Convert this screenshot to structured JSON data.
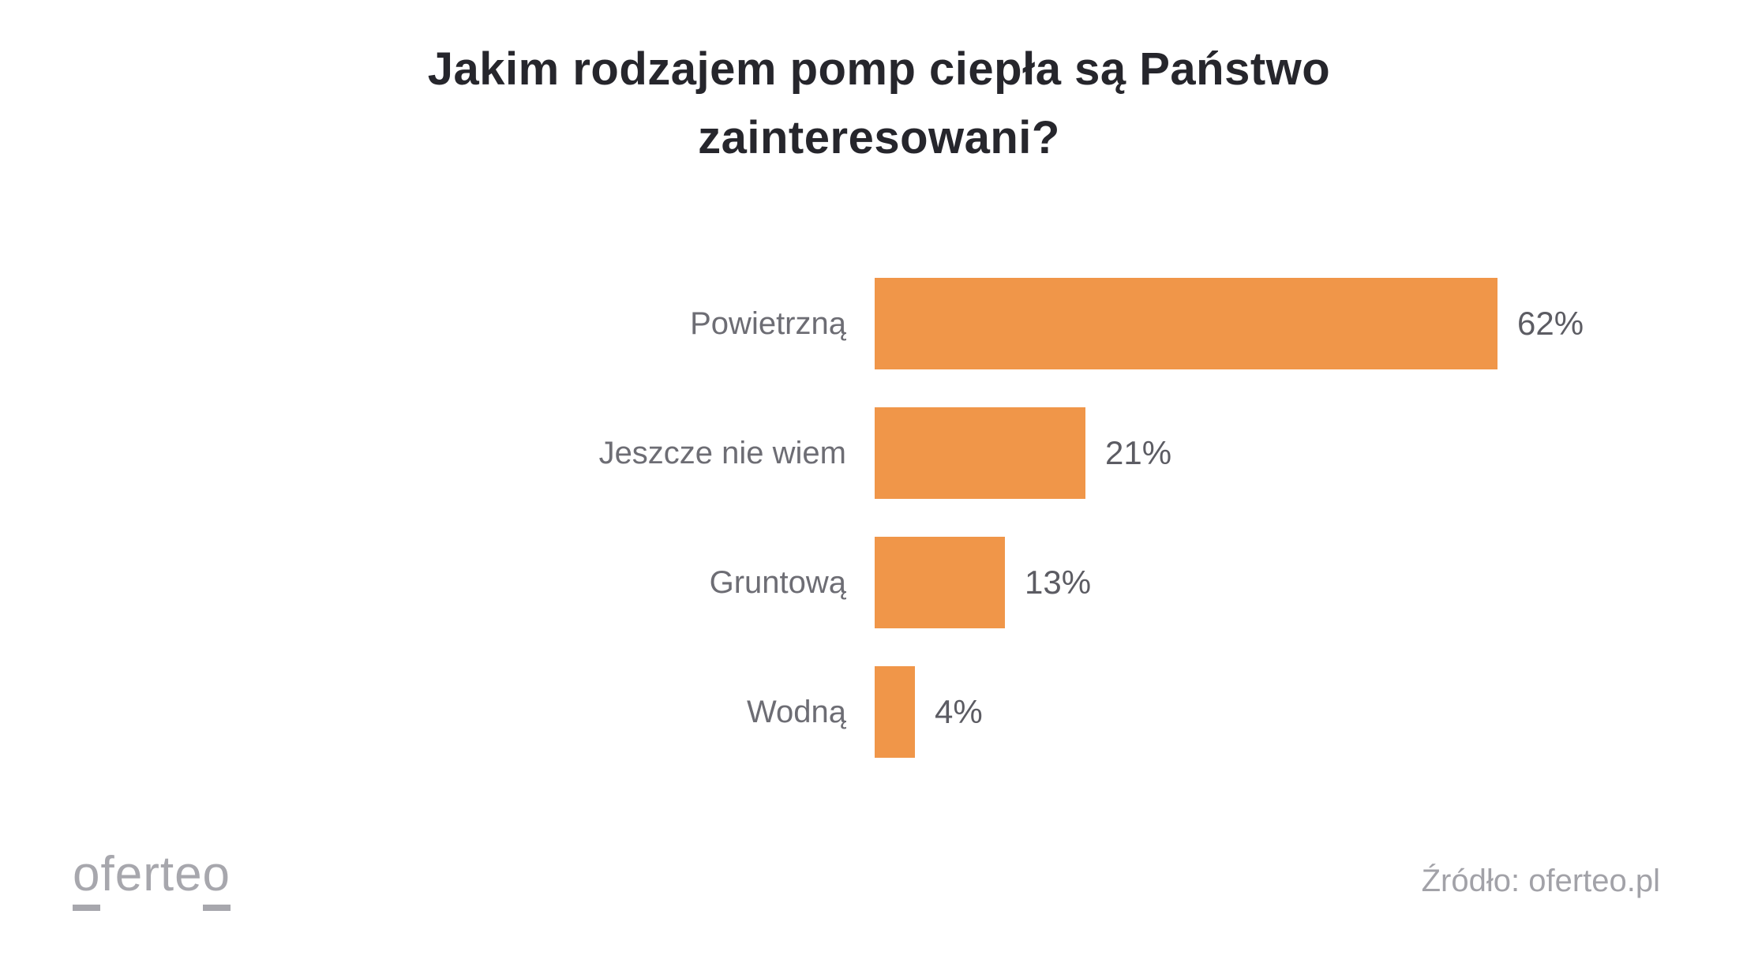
{
  "title": {
    "line1": "Jakim rodzajem pomp ciepła są Państwo",
    "line2": "zainteresowani?"
  },
  "chart_data": {
    "type": "bar",
    "orientation": "horizontal",
    "title": "Jakim rodzajem pomp ciepła są Państwo zainteresowani?",
    "categories": [
      "Powietrzną",
      "Jeszcze nie wiem",
      "Gruntową",
      "Wodną"
    ],
    "values": [
      62,
      21,
      13,
      4
    ],
    "value_labels": [
      "62%",
      "21%",
      "13%",
      "4%"
    ],
    "value_suffix": "%",
    "xlim": [
      0,
      62
    ],
    "grid": false,
    "legend": false,
    "bar_color": "#F09649"
  },
  "footer": {
    "logo": {
      "first": "o",
      "middle": "ferte",
      "last": "o"
    },
    "source": "Źródło: oferteo.pl"
  },
  "colors": {
    "bar": "#F09649",
    "title": "#26262c",
    "label": "#6d6d74",
    "value": "#5c5c63",
    "muted": "#a7a7ad",
    "source": "#a2a2a8"
  }
}
